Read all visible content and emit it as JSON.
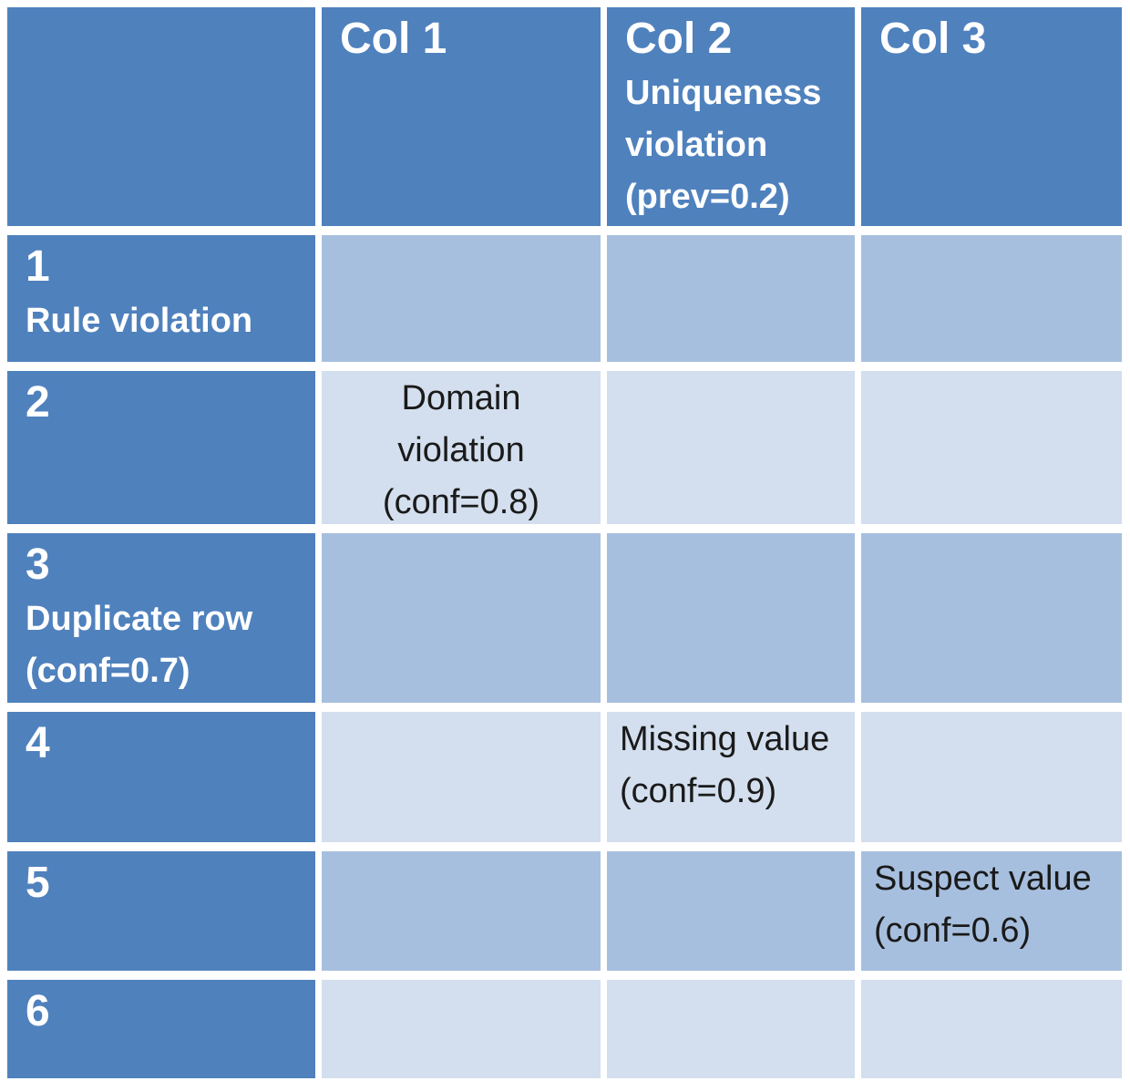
{
  "table": {
    "colors": {
      "header_bg": "#4f81bd",
      "band_dark_bg": "#a7bfde",
      "band_light_bg": "#d3dfee",
      "header_text": "#ffffff",
      "body_text": "#1a1a1a"
    },
    "column_headers": [
      {
        "title": "Col 1",
        "subtitle": ""
      },
      {
        "title": "Col 2",
        "subtitle": "Uniqueness\nviolation\n(prev=0.2)"
      },
      {
        "title": "Col 3",
        "subtitle": ""
      }
    ],
    "rows": [
      {
        "number": "1",
        "label": "Rule violation",
        "cells": [
          "",
          "",
          ""
        ]
      },
      {
        "number": "2",
        "label": "",
        "cells": [
          "Domain\nviolation\n(conf=0.8)",
          "",
          ""
        ]
      },
      {
        "number": "3",
        "label": "Duplicate row\n(conf=0.7)",
        "cells": [
          "",
          "",
          ""
        ]
      },
      {
        "number": "4",
        "label": "",
        "cells": [
          "",
          "Missing value\n(conf=0.9)",
          ""
        ]
      },
      {
        "number": "5",
        "label": "",
        "cells": [
          "",
          "",
          "Suspect value\n(conf=0.6)"
        ]
      },
      {
        "number": "6",
        "label": "",
        "cells": [
          "",
          "",
          ""
        ]
      }
    ]
  },
  "chart_data": {
    "type": "table",
    "title": "",
    "columns": [
      "",
      "Col 1",
      "Col 2 Uniqueness violation (prev=0.2)",
      "Col 3"
    ],
    "row_headers": [
      "1 Rule violation",
      "2",
      "3 Duplicate row (conf=0.7)",
      "4",
      "5",
      "6"
    ],
    "cells": [
      [
        "",
        "",
        ""
      ],
      [
        "Domain violation (conf=0.8)",
        "",
        ""
      ],
      [
        "",
        "",
        ""
      ],
      [
        "",
        "Missing value (conf=0.9)",
        ""
      ],
      [
        "",
        "",
        "Suspect value (conf=0.6)"
      ],
      [
        "",
        "",
        ""
      ]
    ],
    "annotations": [
      {
        "row": "2",
        "column": "Col 1",
        "label": "Domain violation",
        "confidence": 0.8
      },
      {
        "row": "4",
        "column": "Col 2",
        "label": "Missing value",
        "confidence": 0.9
      },
      {
        "row": "5",
        "column": "Col 3",
        "label": "Suspect value",
        "confidence": 0.6
      },
      {
        "row": "3",
        "column": "all",
        "label": "Duplicate row",
        "confidence": 0.7
      },
      {
        "row": "1",
        "column": "all",
        "label": "Rule violation"
      },
      {
        "row": "all",
        "column": "Col 2",
        "label": "Uniqueness violation",
        "prevalence": 0.2
      }
    ],
    "layout_hints": {
      "banded_rows": true,
      "dark_band_rows": [
        "1",
        "3",
        "5"
      ],
      "light_band_rows": [
        "2",
        "4",
        "6"
      ]
    }
  }
}
